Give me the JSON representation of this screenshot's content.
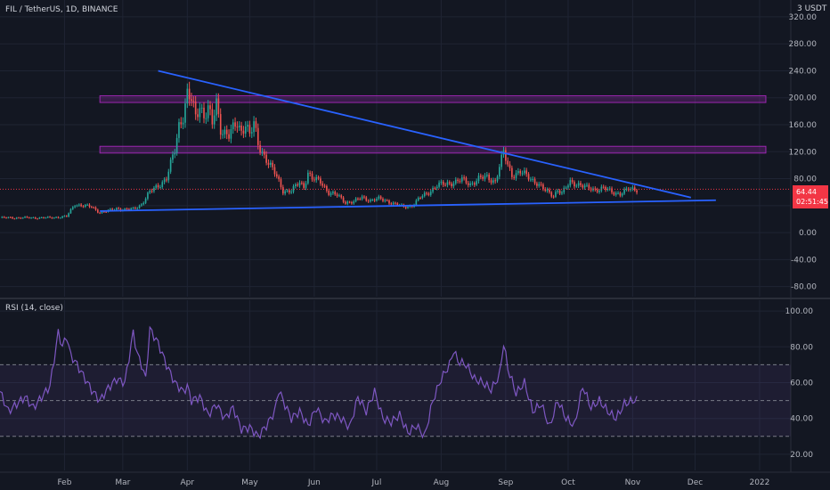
{
  "header": {
    "title": "FIL / TetherUS, 1D, BINANCE",
    "unit_badge": "3 USDT"
  },
  "price_tag": {
    "price": "64.44",
    "countdown": "02:51:45"
  },
  "rsi_panel": {
    "title": "RSI (14, close)"
  },
  "colors": {
    "background": "#131722",
    "up_candle": "#26a69a",
    "down_candle": "#ef5350",
    "trendline": "#2962ff",
    "zone_fill": "#9c27b0",
    "rsi_line": "#7e57c2",
    "price_tag": "#f23645"
  },
  "chart_data": [
    {
      "type": "candlestick",
      "title": "FIL / TetherUS, 1D, BINANCE",
      "y_ticks": [
        "320.00",
        "280.00",
        "240.00",
        "200.00",
        "160.00",
        "120.00",
        "80.00",
        "40.00",
        "0.00",
        "-40.00",
        "-80.00"
      ],
      "y_tick_values": [
        320,
        280,
        240,
        200,
        160,
        120,
        80,
        40,
        0,
        -40,
        -80
      ],
      "ylim": [
        -95,
        345
      ],
      "x_ticks": [
        "Feb",
        "Mar",
        "Apr",
        "May",
        "Jun",
        "Jul",
        "Aug",
        "Sep",
        "Oct",
        "Nov",
        "Dec",
        "2022"
      ],
      "x_tick_days": [
        31,
        59,
        90,
        120,
        151,
        181,
        212,
        243,
        273,
        304,
        334,
        365
      ],
      "xlim": [
        0,
        380
      ],
      "close_series": {
        "day": [
          0,
          20,
          24,
          28,
          32,
          36,
          40,
          44,
          48,
          52,
          56,
          60,
          64,
          68,
          72,
          76,
          80,
          84,
          86,
          88,
          90,
          92,
          94,
          96,
          98,
          100,
          102,
          104,
          106,
          110,
          114,
          116,
          118,
          120,
          122,
          124,
          128,
          132,
          136,
          140,
          144,
          146,
          148,
          150,
          154,
          158,
          162,
          166,
          170,
          174,
          178,
          182,
          186,
          190,
          194,
          198,
          202,
          206,
          210,
          214,
          218,
          222,
          226,
          230,
          234,
          238,
          240,
          242,
          244,
          246,
          250,
          254,
          258,
          262,
          266,
          268,
          270,
          274,
          278,
          282,
          286,
          290,
          294,
          298,
          302,
          306
        ],
        "close": [
          22,
          22,
          22,
          23,
          24,
          42,
          40,
          38,
          30,
          32,
          36,
          34,
          35,
          42,
          60,
          70,
          80,
          122,
          160,
          175,
          205,
          195,
          170,
          190,
          175,
          185,
          160,
          190,
          155,
          145,
          160,
          150,
          165,
          145,
          160,
          130,
          110,
          88,
          62,
          62,
          74,
          68,
          90,
          80,
          75,
          60,
          55,
          45,
          46,
          52,
          48,
          50,
          47,
          42,
          38,
          40,
          52,
          60,
          70,
          72,
          75,
          78,
          72,
          80,
          82,
          76,
          98,
          118,
          100,
          86,
          90,
          82,
          74,
          62,
          55,
          64,
          58,
          75,
          72,
          66,
          64,
          66,
          60,
          58,
          64,
          64
        ]
      },
      "trendlines": [
        {
          "name": "descending-resistance",
          "from": [
            76,
            240
          ],
          "to": [
            332,
            52
          ]
        },
        {
          "name": "ascending-support",
          "from": [
            48,
            32
          ],
          "to": [
            344,
            48
          ]
        }
      ],
      "zones": [
        {
          "name": "upper-resistance-zone",
          "x": [
            48,
            368
          ],
          "y": [
            193,
            203
          ]
        },
        {
          "name": "lower-resistance-zone",
          "x": [
            48,
            368
          ],
          "y": [
            118,
            128
          ]
        }
      ],
      "current_price_line": 64.44
    },
    {
      "type": "line",
      "title": "RSI (14, close)",
      "y_ticks": [
        "100.00",
        "80.00",
        "60.00",
        "40.00",
        "20.00"
      ],
      "y_tick_values": [
        100,
        80,
        60,
        40,
        20
      ],
      "ylim": [
        11,
        106
      ],
      "bands": {
        "upper": 70,
        "middle": 50,
        "lower": 30
      },
      "series": {
        "day": [
          0,
          4,
          8,
          12,
          16,
          20,
          24,
          28,
          30,
          32,
          34,
          36,
          40,
          44,
          48,
          52,
          56,
          60,
          64,
          66,
          68,
          70,
          72,
          76,
          80,
          84,
          88,
          90,
          92,
          96,
          100,
          104,
          108,
          112,
          116,
          120,
          124,
          128,
          132,
          134,
          136,
          140,
          144,
          148,
          152,
          156,
          160,
          164,
          168,
          172,
          176,
          180,
          184,
          188,
          192,
          196,
          200,
          204,
          208,
          212,
          216,
          218,
          220,
          224,
          228,
          232,
          236,
          240,
          242,
          244,
          248,
          252,
          256,
          260,
          262,
          264,
          268,
          272,
          276,
          280,
          284,
          288,
          292,
          296,
          300,
          304,
          306
        ],
        "rsi": [
          55,
          44,
          48,
          52,
          46,
          52,
          58,
          88,
          80,
          86,
          75,
          72,
          64,
          56,
          50,
          57,
          62,
          60,
          88,
          76,
          70,
          62,
          90,
          82,
          70,
          60,
          55,
          58,
          50,
          52,
          42,
          48,
          40,
          46,
          34,
          35,
          30,
          36,
          44,
          56,
          50,
          40,
          44,
          36,
          46,
          38,
          42,
          40,
          35,
          52,
          44,
          55,
          40,
          38,
          42,
          32,
          36,
          30,
          50,
          62,
          70,
          78,
          72,
          70,
          62,
          60,
          56,
          64,
          82,
          68,
          54,
          60,
          44,
          48,
          42,
          35,
          50,
          40,
          36,
          58,
          46,
          50,
          44,
          40,
          48,
          50,
          50
        ]
      }
    }
  ]
}
